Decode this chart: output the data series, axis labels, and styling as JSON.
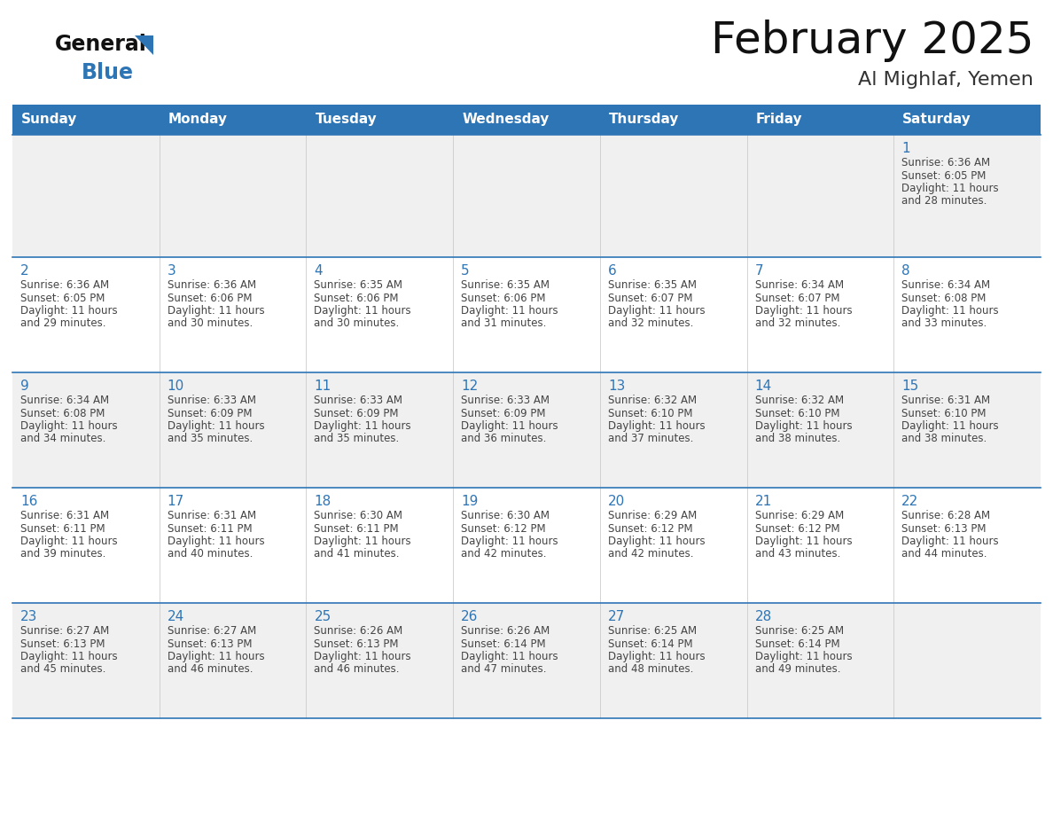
{
  "title": "February 2025",
  "subtitle": "Al Mighlaf, Yemen",
  "header_color": "#2E75B6",
  "header_text_color": "#FFFFFF",
  "bg_color": "#FFFFFF",
  "alt_row_color": "#F0F0F0",
  "cell_text_color": "#444444",
  "day_num_color": "#2E75B6",
  "border_color": "#2E75B6",
  "days_of_week": [
    "Sunday",
    "Monday",
    "Tuesday",
    "Wednesday",
    "Thursday",
    "Friday",
    "Saturday"
  ],
  "calendar_data": [
    [
      {
        "day": "",
        "sunrise": "",
        "sunset": "",
        "daylight_hours": "",
        "daylight_mins": ""
      },
      {
        "day": "",
        "sunrise": "",
        "sunset": "",
        "daylight_hours": "",
        "daylight_mins": ""
      },
      {
        "day": "",
        "sunrise": "",
        "sunset": "",
        "daylight_hours": "",
        "daylight_mins": ""
      },
      {
        "day": "",
        "sunrise": "",
        "sunset": "",
        "daylight_hours": "",
        "daylight_mins": ""
      },
      {
        "day": "",
        "sunrise": "",
        "sunset": "",
        "daylight_hours": "",
        "daylight_mins": ""
      },
      {
        "day": "",
        "sunrise": "",
        "sunset": "",
        "daylight_hours": "",
        "daylight_mins": ""
      },
      {
        "day": "1",
        "sunrise": "6:36 AM",
        "sunset": "6:05 PM",
        "daylight_hours": "11 hours",
        "daylight_mins": "and 28 minutes."
      }
    ],
    [
      {
        "day": "2",
        "sunrise": "6:36 AM",
        "sunset": "6:05 PM",
        "daylight_hours": "11 hours",
        "daylight_mins": "and 29 minutes."
      },
      {
        "day": "3",
        "sunrise": "6:36 AM",
        "sunset": "6:06 PM",
        "daylight_hours": "11 hours",
        "daylight_mins": "and 30 minutes."
      },
      {
        "day": "4",
        "sunrise": "6:35 AM",
        "sunset": "6:06 PM",
        "daylight_hours": "11 hours",
        "daylight_mins": "and 30 minutes."
      },
      {
        "day": "5",
        "sunrise": "6:35 AM",
        "sunset": "6:06 PM",
        "daylight_hours": "11 hours",
        "daylight_mins": "and 31 minutes."
      },
      {
        "day": "6",
        "sunrise": "6:35 AM",
        "sunset": "6:07 PM",
        "daylight_hours": "11 hours",
        "daylight_mins": "and 32 minutes."
      },
      {
        "day": "7",
        "sunrise": "6:34 AM",
        "sunset": "6:07 PM",
        "daylight_hours": "11 hours",
        "daylight_mins": "and 32 minutes."
      },
      {
        "day": "8",
        "sunrise": "6:34 AM",
        "sunset": "6:08 PM",
        "daylight_hours": "11 hours",
        "daylight_mins": "and 33 minutes."
      }
    ],
    [
      {
        "day": "9",
        "sunrise": "6:34 AM",
        "sunset": "6:08 PM",
        "daylight_hours": "11 hours",
        "daylight_mins": "and 34 minutes."
      },
      {
        "day": "10",
        "sunrise": "6:33 AM",
        "sunset": "6:09 PM",
        "daylight_hours": "11 hours",
        "daylight_mins": "and 35 minutes."
      },
      {
        "day": "11",
        "sunrise": "6:33 AM",
        "sunset": "6:09 PM",
        "daylight_hours": "11 hours",
        "daylight_mins": "and 35 minutes."
      },
      {
        "day": "12",
        "sunrise": "6:33 AM",
        "sunset": "6:09 PM",
        "daylight_hours": "11 hours",
        "daylight_mins": "and 36 minutes."
      },
      {
        "day": "13",
        "sunrise": "6:32 AM",
        "sunset": "6:10 PM",
        "daylight_hours": "11 hours",
        "daylight_mins": "and 37 minutes."
      },
      {
        "day": "14",
        "sunrise": "6:32 AM",
        "sunset": "6:10 PM",
        "daylight_hours": "11 hours",
        "daylight_mins": "and 38 minutes."
      },
      {
        "day": "15",
        "sunrise": "6:31 AM",
        "sunset": "6:10 PM",
        "daylight_hours": "11 hours",
        "daylight_mins": "and 38 minutes."
      }
    ],
    [
      {
        "day": "16",
        "sunrise": "6:31 AM",
        "sunset": "6:11 PM",
        "daylight_hours": "11 hours",
        "daylight_mins": "and 39 minutes."
      },
      {
        "day": "17",
        "sunrise": "6:31 AM",
        "sunset": "6:11 PM",
        "daylight_hours": "11 hours",
        "daylight_mins": "and 40 minutes."
      },
      {
        "day": "18",
        "sunrise": "6:30 AM",
        "sunset": "6:11 PM",
        "daylight_hours": "11 hours",
        "daylight_mins": "and 41 minutes."
      },
      {
        "day": "19",
        "sunrise": "6:30 AM",
        "sunset": "6:12 PM",
        "daylight_hours": "11 hours",
        "daylight_mins": "and 42 minutes."
      },
      {
        "day": "20",
        "sunrise": "6:29 AM",
        "sunset": "6:12 PM",
        "daylight_hours": "11 hours",
        "daylight_mins": "and 42 minutes."
      },
      {
        "day": "21",
        "sunrise": "6:29 AM",
        "sunset": "6:12 PM",
        "daylight_hours": "11 hours",
        "daylight_mins": "and 43 minutes."
      },
      {
        "day": "22",
        "sunrise": "6:28 AM",
        "sunset": "6:13 PM",
        "daylight_hours": "11 hours",
        "daylight_mins": "and 44 minutes."
      }
    ],
    [
      {
        "day": "23",
        "sunrise": "6:27 AM",
        "sunset": "6:13 PM",
        "daylight_hours": "11 hours",
        "daylight_mins": "and 45 minutes."
      },
      {
        "day": "24",
        "sunrise": "6:27 AM",
        "sunset": "6:13 PM",
        "daylight_hours": "11 hours",
        "daylight_mins": "and 46 minutes."
      },
      {
        "day": "25",
        "sunrise": "6:26 AM",
        "sunset": "6:13 PM",
        "daylight_hours": "11 hours",
        "daylight_mins": "and 46 minutes."
      },
      {
        "day": "26",
        "sunrise": "6:26 AM",
        "sunset": "6:14 PM",
        "daylight_hours": "11 hours",
        "daylight_mins": "and 47 minutes."
      },
      {
        "day": "27",
        "sunrise": "6:25 AM",
        "sunset": "6:14 PM",
        "daylight_hours": "11 hours",
        "daylight_mins": "and 48 minutes."
      },
      {
        "day": "28",
        "sunrise": "6:25 AM",
        "sunset": "6:14 PM",
        "daylight_hours": "11 hours",
        "daylight_mins": "and 49 minutes."
      },
      {
        "day": "",
        "sunrise": "",
        "sunset": "",
        "daylight_hours": "",
        "daylight_mins": ""
      }
    ]
  ]
}
